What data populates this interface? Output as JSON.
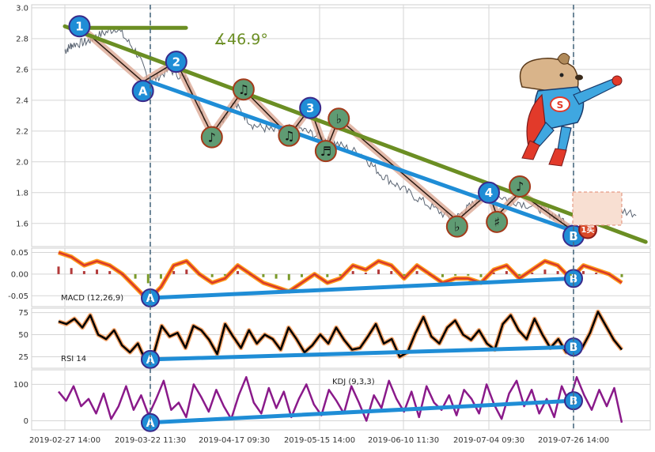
{
  "chart_data": [
    {
      "type": "line",
      "panel": "price",
      "ylim": [
        1.45,
        3.02
      ],
      "yticks": [
        "3.0",
        "2.8",
        "2.6",
        "2.4",
        "2.2",
        "2.0",
        "1.8",
        "1.6"
      ],
      "ytick_values": [
        3.0,
        2.8,
        2.6,
        2.4,
        2.2,
        2.0,
        1.8,
        1.6
      ],
      "angle_label": "∡46.9°",
      "series": [
        {
          "points": [
            [
              "2019-02-27 14:00",
              2.72
            ],
            [
              "2019-03-01",
              2.76
            ],
            [
              "2019-03-05",
              2.78
            ],
            [
              "2019-03-08",
              2.82
            ],
            [
              "2019-03-13",
              2.87
            ],
            [
              "2019-03-18",
              2.72
            ],
            [
              "2019-03-22 11:30",
              2.52
            ],
            [
              "2019-03-28",
              2.6
            ],
            [
              "2019-04-03",
              2.52
            ],
            [
              "2019-04-10",
              2.18
            ],
            [
              "2019-04-17 09:30",
              2.38
            ],
            [
              "2019-04-23",
              2.24
            ],
            [
              "2019-04-30",
              2.2
            ],
            [
              "2019-05-08",
              2.22
            ],
            [
              "2019-05-15 14:00",
              2.16
            ],
            [
              "2019-05-20",
              2.12
            ],
            [
              "2019-05-28",
              2.05
            ],
            [
              "2019-06-03",
              1.92
            ],
            [
              "2019-06-10 11:30",
              1.82
            ],
            [
              "2019-06-17",
              1.72
            ],
            [
              "2019-06-24",
              1.62
            ],
            [
              "2019-06-28",
              1.7
            ],
            [
              "2019-07-04 09:30",
              1.8
            ],
            [
              "2019-07-10",
              1.75
            ],
            [
              "2019-07-17",
              1.7
            ],
            [
              "2019-07-22",
              1.64
            ],
            [
              "2019-07-26 14:00",
              1.58
            ],
            [
              "2019-07-30",
              1.62
            ],
            [
              "2019-08-05",
              1.7
            ],
            [
              "2019-08-12",
              1.66
            ]
          ]
        }
      ],
      "trendlines": [
        {
          "from": [
            "2019-02-27 14:00",
            2.88
          ],
          "to": [
            "2019-08-14",
            1.48
          ],
          "color": "#6b8e23"
        },
        {
          "from": [
            "2019-03-22 11:30",
            2.52
          ],
          "to": [
            "2019-07-26 14:00",
            1.55
          ],
          "color": "#1f8dd6"
        },
        {
          "from": [
            "2019-03-01",
            2.87
          ],
          "to": [
            "2019-04-02",
            2.87
          ],
          "color": "#6b8e23"
        }
      ],
      "wave_markers": [
        {
          "label": "1",
          "x": "2019-03-03",
          "y": 2.88
        },
        {
          "label": "2",
          "x": "2019-03-30",
          "y": 2.65
        },
        {
          "label": "3",
          "x": "2019-05-12",
          "y": 2.35
        },
        {
          "label": "4",
          "x": "2019-07-04 09:30",
          "y": 1.8
        },
        {
          "label": "A",
          "x": "2019-03-20",
          "y": 2.46
        },
        {
          "label": "B",
          "x": "2019-07-26 14:00",
          "y": 1.52
        }
      ],
      "note_markers": [
        {
          "label": "♪",
          "x": "2019-04-10",
          "y": 2.16
        },
        {
          "label": "♫",
          "x": "2019-04-20",
          "y": 2.47
        },
        {
          "label": "♫",
          "x": "2019-05-05",
          "y": 2.17
        },
        {
          "label": "♬",
          "x": "2019-05-17",
          "y": 2.07
        },
        {
          "label": "♭",
          "x": "2019-05-21",
          "y": 2.28
        },
        {
          "label": "♭",
          "x": "2019-06-25",
          "y": 1.58
        },
        {
          "label": "♯",
          "x": "2019-07-06",
          "y": 1.61
        },
        {
          "label": "♪",
          "x": "2019-07-12",
          "y": 1.84
        }
      ],
      "buy_badge": "1买"
    },
    {
      "type": "line",
      "panel": "macd",
      "label": "MACD (12,26,9)",
      "ylim": [
        -0.075,
        0.06
      ],
      "yticks": [
        "0.05",
        "0.00",
        "-0.05"
      ],
      "ytick_values": [
        0.05,
        0.0,
        -0.05
      ],
      "series": [
        {
          "values": [
            0.05,
            0.04,
            0.02,
            0.03,
            0.02,
            0.0,
            -0.03,
            -0.06,
            -0.03,
            0.02,
            0.03,
            0.0,
            -0.02,
            -0.01,
            0.02,
            0.0,
            -0.02,
            -0.03,
            -0.04,
            -0.02,
            0.0,
            -0.02,
            -0.01,
            0.02,
            0.01,
            0.03,
            0.02,
            -0.01,
            0.02,
            0.0,
            -0.02,
            -0.01,
            -0.01,
            -0.02,
            0.01,
            0.02,
            -0.01,
            0.01,
            0.03,
            0.02,
            -0.01,
            0.02,
            0.01,
            0.0,
            -0.02
          ]
        }
      ],
      "divergence": {
        "from_label": "A",
        "to_label": "B",
        "from": -0.055,
        "to": -0.01
      }
    },
    {
      "type": "line",
      "panel": "rsi",
      "label": "RSI 14",
      "ylim": [
        12,
        80
      ],
      "yticks": [
        "75",
        "50",
        "25"
      ],
      "ytick_values": [
        75,
        50,
        25
      ],
      "series": [
        {
          "values": [
            65,
            62,
            68,
            58,
            72,
            50,
            45,
            55,
            38,
            30,
            40,
            20,
            28,
            60,
            48,
            52,
            35,
            60,
            55,
            44,
            28,
            62,
            48,
            35,
            55,
            40,
            50,
            45,
            33,
            58,
            45,
            30,
            38,
            50,
            40,
            58,
            44,
            33,
            35,
            48,
            62,
            40,
            45,
            25,
            30,
            52,
            70,
            48,
            40,
            58,
            66,
            50,
            44,
            55,
            40,
            33,
            62,
            72,
            55,
            45,
            68,
            50,
            35,
            45,
            30,
            40,
            35,
            52,
            76,
            60,
            44,
            33
          ]
        }
      ],
      "divergence": {
        "from_label": "A",
        "to_label": "B",
        "from": 22,
        "to": 36
      }
    },
    {
      "type": "line",
      "panel": "kdj",
      "label": "KDJ (9,3,3)",
      "ylim": [
        -25,
        140
      ],
      "yticks": [
        "100",
        "0"
      ],
      "ytick_values": [
        100,
        0
      ],
      "series": [
        {
          "values": [
            80,
            55,
            95,
            40,
            60,
            20,
            75,
            5,
            40,
            95,
            30,
            70,
            15,
            60,
            110,
            30,
            50,
            10,
            100,
            65,
            25,
            85,
            40,
            5,
            70,
            120,
            50,
            20,
            90,
            35,
            80,
            10,
            60,
            100,
            45,
            15,
            85,
            55,
            20,
            95,
            50,
            0,
            70,
            35,
            110,
            60,
            25,
            80,
            10,
            95,
            50,
            30,
            70,
            15,
            85,
            60,
            20,
            100,
            45,
            5,
            75,
            110,
            40,
            85,
            20,
            60,
            10,
            95,
            50,
            120,
            70,
            30,
            85,
            40,
            90,
            -5
          ]
        }
      ],
      "divergence": {
        "from_label": "A",
        "to_label": "B",
        "from": -5,
        "to": 55
      }
    }
  ],
  "x_axis": {
    "ticks": [
      "2019-02-27 14:00",
      "2019-03-22 11:30",
      "2019-04-17 09:30",
      "2019-05-15 14:00",
      "2019-06-10 11:30",
      "2019-07-04 09:30",
      "2019-07-26 14:00"
    ]
  },
  "colors": {
    "price_line": "#5a6472",
    "wave_zigzag": "#2a1a12",
    "wave_halo": "#d9a38e",
    "trend_green": "#6b8e23",
    "trend_blue": "#1f8dd6",
    "circle_fill": "#1f8dd6",
    "circle_stroke": "#3a2a8a",
    "note_fill": "#5f9b73",
    "note_stroke": "#a33a1a",
    "macd": "#d93a2a",
    "macd_signal": "#ff9a1a",
    "rsi": "#000000",
    "rsi_glow": "#f5a56a",
    "kdj": "#8a1a8a",
    "kdj_other": "#3a3a8a",
    "dashed_vline": "#4b6a80",
    "grid": "#d5d5d5",
    "buy_badge": "#d84a2a"
  },
  "icons": {
    "mascot": "superhero-dog-icon"
  }
}
